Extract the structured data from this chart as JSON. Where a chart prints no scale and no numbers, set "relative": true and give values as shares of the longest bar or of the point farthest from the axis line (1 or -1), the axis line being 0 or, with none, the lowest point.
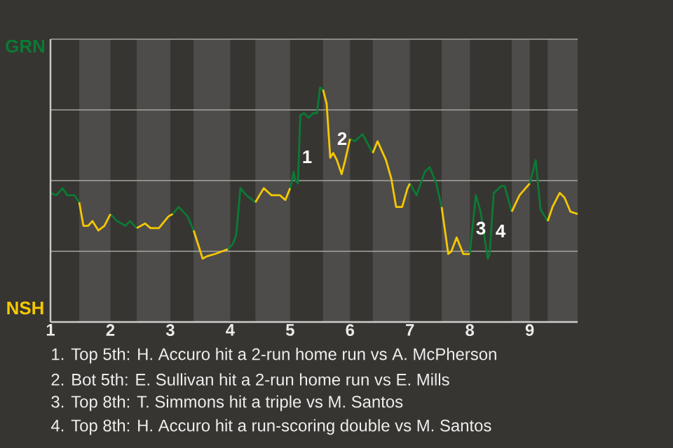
{
  "chart_data": {
    "type": "line",
    "relative": true,
    "xlim": [
      1,
      9.8
    ],
    "xticks": [
      1,
      2,
      3,
      4,
      5,
      6,
      7,
      8,
      9
    ],
    "grid": "y",
    "marker": "none",
    "line_style": "solid",
    "bands": [
      {
        "axis": "x",
        "from": 1.48,
        "to": 2,
        "color": "#4e4c4a"
      },
      {
        "axis": "x",
        "from": 2.44,
        "to": 3,
        "color": "#4e4c4a"
      },
      {
        "axis": "x",
        "from": 3.39,
        "to": 4,
        "color": "#4e4c4a"
      },
      {
        "axis": "x",
        "from": 4.42,
        "to": 5,
        "color": "#4e4c4a"
      },
      {
        "axis": "x",
        "from": 5.55,
        "to": 6,
        "color": "#4e4c4a"
      },
      {
        "axis": "x",
        "from": 6.38,
        "to": 7,
        "color": "#4e4c4a"
      },
      {
        "axis": "x",
        "from": 7.53,
        "to": 8,
        "color": "#4e4c4a"
      },
      {
        "axis": "x",
        "from": 8.7,
        "to": 9,
        "color": "#4e4c4a"
      },
      {
        "axis": "x",
        "from": 9.3,
        "to": 9.8,
        "color": "#4e4c4a"
      }
    ],
    "series": [
      {
        "color": "#0b7a35",
        "x": [
          1,
          1.1,
          1.2,
          1.28,
          1.4,
          1.48,
          null,
          2,
          2.11,
          2.25,
          2.33,
          2.44,
          null,
          3.04,
          3.14,
          3.29,
          3.39,
          null,
          3.96,
          4.04,
          4.1,
          4.17,
          4.27,
          4.42,
          null,
          5,
          5.06,
          5.08,
          5.13,
          5.17,
          5.23,
          5.31,
          5.39,
          5.45,
          5.5,
          5.55,
          null,
          6,
          6.08,
          6.21,
          6.38,
          null,
          7,
          7.11,
          7.25,
          7.33,
          7.44,
          7.53,
          null,
          8,
          8.1,
          8.18,
          8.3,
          8.33,
          8.4,
          8.53,
          8.58,
          8.7,
          null,
          9,
          9.08,
          9.1,
          9.18,
          9.3
        ],
        "values": [
          0.55,
          0.54,
          0.57,
          0.54,
          0.54,
          0.51,
          null,
          0.46,
          0.43,
          0.41,
          0.43,
          0.4,
          null,
          0.46,
          0.49,
          0.45,
          0.39,
          null,
          0.31,
          0.33,
          0.37,
          0.57,
          0.54,
          0.51,
          null,
          0.57,
          0.64,
          0.61,
          0.59,
          0.88,
          0.89,
          0.87,
          0.89,
          0.89,
          1.0,
          0.99,
          null,
          0.78,
          0.77,
          0.8,
          0.72,
          null,
          0.59,
          0.54,
          0.64,
          0.66,
          0.59,
          0.49,
          null,
          0.29,
          0.54,
          0.47,
          0.27,
          0.29,
          0.55,
          0.58,
          0.58,
          0.47,
          null,
          0.59,
          0.67,
          0.69,
          0.48,
          0.43
        ]
      },
      {
        "color": "#f5c800",
        "x": [
          1.48,
          1.55,
          1.63,
          1.7,
          1.8,
          1.9,
          2,
          null,
          2.44,
          2.58,
          2.67,
          2.81,
          2.97,
          3.04,
          null,
          3.39,
          3.54,
          3.61,
          3.75,
          3.96,
          null,
          4.42,
          4.56,
          4.69,
          4.83,
          4.92,
          5,
          null,
          5.55,
          5.61,
          5.67,
          5.72,
          5.78,
          5.86,
          5.92,
          6,
          null,
          6.38,
          6.46,
          6.6,
          6.69,
          6.77,
          6.87,
          6.96,
          7,
          null,
          7.53,
          7.64,
          7.69,
          7.78,
          7.89,
          8,
          null,
          8.7,
          8.83,
          9,
          null,
          9.3,
          9.38,
          9.5,
          9.58,
          9.68,
          9.8
        ],
        "values": [
          0.51,
          0.41,
          0.41,
          0.43,
          0.39,
          0.41,
          0.46,
          null,
          0.4,
          0.42,
          0.4,
          0.4,
          0.45,
          0.46,
          null,
          0.39,
          0.27,
          0.28,
          0.29,
          0.31,
          null,
          0.51,
          0.57,
          0.54,
          0.54,
          0.52,
          0.57,
          null,
          0.99,
          0.93,
          0.7,
          0.72,
          0.69,
          0.63,
          0.69,
          0.78,
          null,
          0.72,
          0.77,
          0.69,
          0.61,
          0.49,
          0.49,
          0.57,
          0.59,
          null,
          0.49,
          0.29,
          0.3,
          0.36,
          0.29,
          0.29,
          null,
          0.47,
          0.54,
          0.59,
          null,
          0.43,
          0.49,
          0.55,
          0.53,
          0.47,
          0.46
        ]
      }
    ],
    "annotations": [
      "GRN",
      "NSH",
      "1",
      "2",
      "3",
      "4",
      "1. Top 5th: H. Accuro hit a 2-run home run vs A. McPherson",
      "2. Bot 5th: E. Sullivan hit a 2-run home run vs E. Mills",
      "3. Top 8th: T. Simmons hit a triple vs M. Santos",
      "4. Top 8th: H. Accuro hit a run-scoring double vs M. Santos"
    ]
  }
}
